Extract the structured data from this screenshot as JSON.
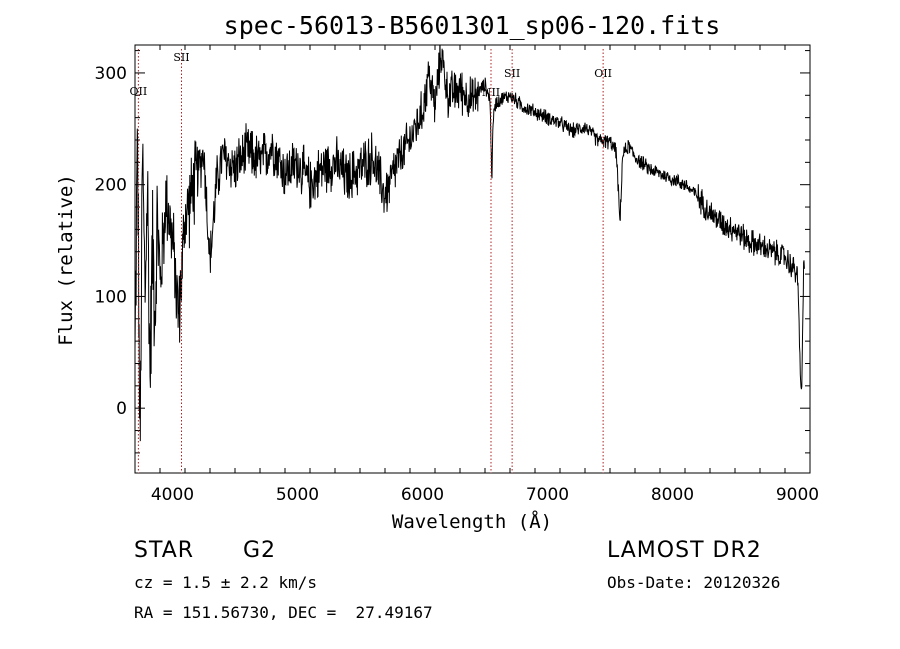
{
  "chart_data": {
    "type": "line",
    "title": "spec-56013-B5601301_sp06-120.fits",
    "xlabel": "Wavelength (Å)",
    "ylabel": "Flux (relative)",
    "xlim": [
      3700,
      9100
    ],
    "ylim": [
      -58,
      325
    ],
    "x_ticks": [
      4000,
      5000,
      6000,
      7000,
      8000,
      9000
    ],
    "y_ticks": [
      0,
      100,
      200,
      300
    ],
    "grid": false,
    "line_color": "#000000",
    "marker_color": "#b22222",
    "spectral_lines": [
      {
        "label": "OII",
        "wavelength": 3727
      },
      {
        "label": "SII",
        "wavelength": 4072
      },
      {
        "label": "NII",
        "wavelength": 6548
      },
      {
        "label": "SII",
        "wavelength": 6717
      },
      {
        "label": "OII",
        "wavelength": 7445
      }
    ],
    "series": [
      {
        "x": [
          3700,
          3720,
          3740,
          3760,
          3780,
          3800,
          3820,
          3840,
          3860,
          3880,
          3900,
          3950,
          4000,
          4050,
          4100,
          4150,
          4200,
          4250,
          4300,
          4350,
          4400,
          4500,
          4600,
          4700,
          4800,
          4900,
          5000,
          5100,
          5200,
          5300,
          5400,
          5500,
          5600,
          5700,
          5800,
          5900,
          6000,
          6050,
          6100,
          6150,
          6200,
          6300,
          6400,
          6500,
          6540,
          6555,
          6563,
          6575,
          6600,
          6700,
          6800,
          6900,
          7000,
          7100,
          7200,
          7300,
          7400,
          7500,
          7550,
          7580,
          7600,
          7620,
          7650,
          7700,
          7800,
          7900,
          8000,
          8100,
          8200,
          8300,
          8400,
          8500,
          8600,
          8700,
          8800,
          8900,
          9000,
          9030,
          9050
        ],
        "y": [
          40,
          250,
          -50,
          230,
          100,
          200,
          30,
          150,
          90,
          170,
          110,
          190,
          150,
          80,
          170,
          190,
          210,
          230,
          130,
          200,
          225,
          215,
          230,
          220,
          235,
          210,
          220,
          200,
          215,
          220,
          205,
          215,
          225,
          190,
          220,
          240,
          265,
          300,
          270,
          320,
          280,
          285,
          275,
          290,
          275,
          205,
          250,
          270,
          275,
          280,
          270,
          265,
          260,
          255,
          248,
          252,
          240,
          238,
          230,
          165,
          225,
          230,
          235,
          225,
          215,
          210,
          205,
          200,
          190,
          175,
          165,
          160,
          150,
          145,
          140,
          135,
          120,
          5,
          125
        ]
      }
    ]
  },
  "info": {
    "object_class": "STAR",
    "subclass": "G2",
    "redshift_line": "cz = 1.5 ± 2.2 km/s",
    "coords_line": "RA = 151.56730, DEC =  27.49167",
    "survey": "LAMOST DR2",
    "obs_date_line": "Obs-Date: 20120326"
  }
}
